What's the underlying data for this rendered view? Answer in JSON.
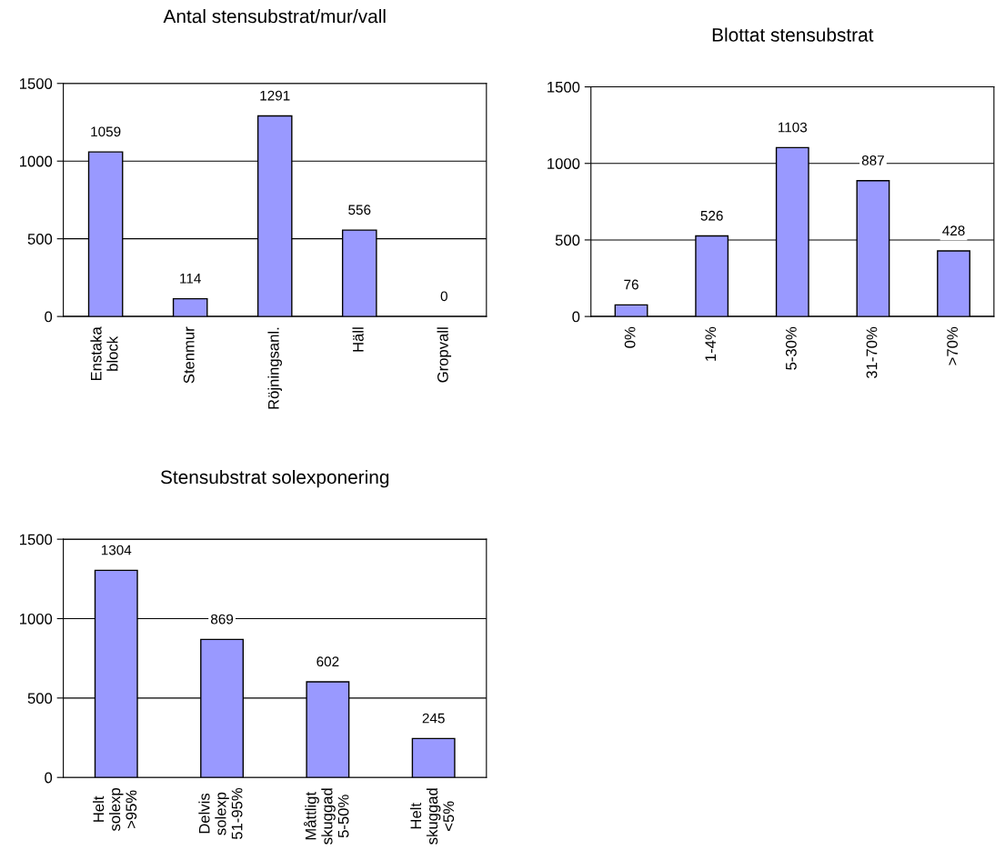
{
  "chart_data": [
    {
      "type": "bar",
      "title": "Antal stensubstrat/mur/vall",
      "categories": [
        "Enstaka\nblock",
        "Stenmur",
        "Röjningsanl.",
        "Häll",
        "Gropvall"
      ],
      "values": [
        1059,
        114,
        1291,
        556,
        0
      ],
      "color": "#9999ff",
      "ylim": [
        0,
        1500
      ],
      "yticks": [
        0,
        500,
        1000,
        1500
      ],
      "grid": "y",
      "data_labels": true
    },
    {
      "type": "bar",
      "title": "Blottat stensubstrat",
      "categories": [
        "0%",
        "1-4%",
        "5-30%",
        "31-70%",
        ">70%"
      ],
      "values": [
        76,
        526,
        1103,
        887,
        428
      ],
      "color": "#9999ff",
      "ylim": [
        0,
        1500
      ],
      "yticks": [
        0,
        500,
        1000,
        1500
      ],
      "grid": "y",
      "data_labels": true
    },
    {
      "type": "bar",
      "title": "Stensubstrat solexponering",
      "categories": [
        "Helt\nsolexp\n>95%",
        "Delvis\nsolexp\n51-95%",
        "Måttligt\nskuggad\n5-50%",
        "Helt\nskuggad\n<5%"
      ],
      "values": [
        1304,
        869,
        602,
        245
      ],
      "color": "#9999ff",
      "ylim": [
        0,
        1500
      ],
      "yticks": [
        0,
        500,
        1000,
        1500
      ],
      "grid": "y",
      "data_labels": true
    }
  ]
}
